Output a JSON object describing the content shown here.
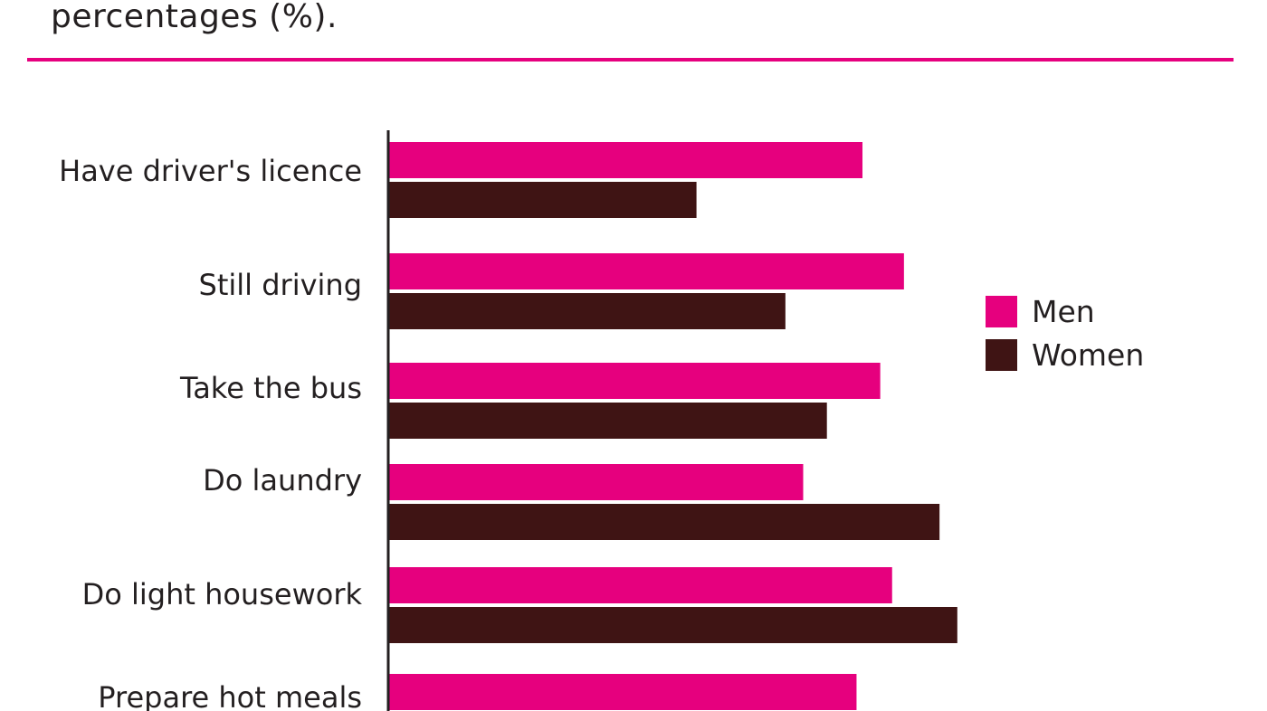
{
  "header": {
    "caption_tail": "percentages (%)."
  },
  "colors": {
    "men": "#e6007e",
    "women": "#3f1414",
    "accent_rule": "#e6007e",
    "axis": "#231f20"
  },
  "legend": {
    "placement": "right",
    "items": [
      {
        "label": "Men",
        "color": "#e6007e"
      },
      {
        "label": "Women",
        "color": "#3f1414"
      }
    ]
  },
  "chart_data": {
    "type": "bar",
    "orientation": "horizontal",
    "title": "",
    "xlabel": "",
    "ylabel": "",
    "grid": false,
    "categories": [
      "Have driver's licence",
      "Still driving",
      "Take the bus",
      "Do laundry",
      "Do light housework",
      "Prepare hot meals"
    ],
    "series": [
      {
        "name": "Men",
        "values": [
          80,
          87,
          83,
          70,
          85,
          79
        ]
      },
      {
        "name": "Women",
        "values": [
          52,
          67,
          74,
          93,
          96,
          null
        ]
      }
    ],
    "xlim": [
      0,
      100
    ]
  }
}
